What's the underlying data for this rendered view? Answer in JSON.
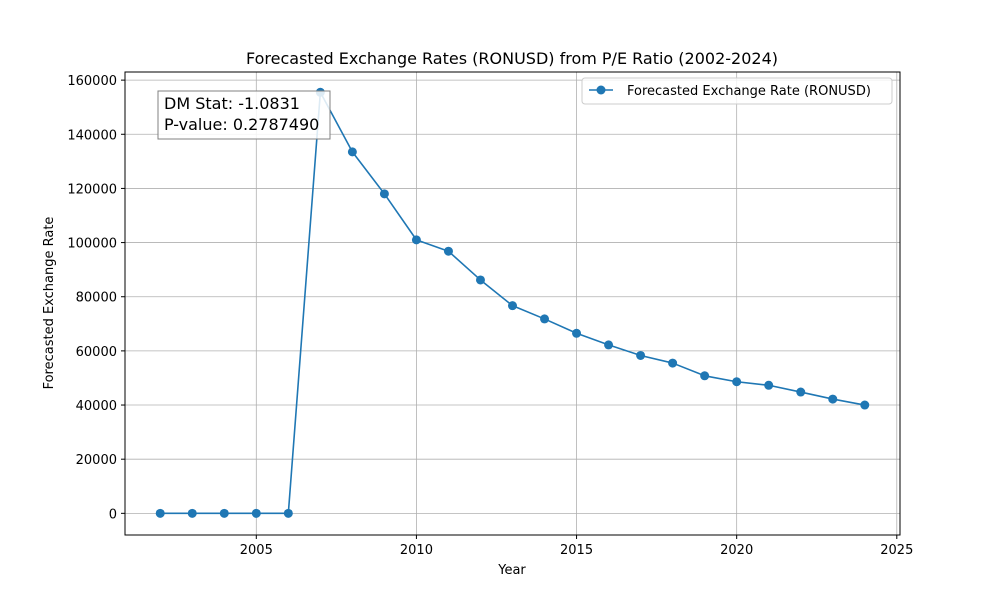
{
  "chart_data": {
    "type": "line",
    "title": "Forecasted Exchange Rates (RONUSD) from P/E Ratio (2002-2024)",
    "xlabel": "Year",
    "ylabel": "Forecasted Exchange Rate",
    "xlim": [
      2000.9,
      2025.1
    ],
    "ylim": [
      -8000,
      163000
    ],
    "xticks": [
      2005,
      2010,
      2015,
      2020,
      2025
    ],
    "yticks": [
      0,
      20000,
      40000,
      60000,
      80000,
      100000,
      120000,
      140000,
      160000
    ],
    "grid": true,
    "legend_position": "top-right",
    "series": [
      {
        "name": "Forecasted Exchange Rate (RONUSD)",
        "color": "#1f77b4",
        "marker": "circle",
        "x": [
          2002,
          2003,
          2004,
          2005,
          2006,
          2007,
          2008,
          2009,
          2010,
          2011,
          2012,
          2013,
          2014,
          2015,
          2016,
          2017,
          2018,
          2019,
          2020,
          2021,
          2022,
          2023,
          2024
        ],
        "y": [
          0,
          0,
          0,
          0,
          0,
          155500,
          133500,
          118000,
          101000,
          96800,
          86200,
          76700,
          71800,
          66500,
          62200,
          58300,
          55500,
          50800,
          48600,
          47300,
          44800,
          42200,
          40000
        ]
      }
    ],
    "annotation": {
      "lines": [
        "DM Stat: -1.0831",
        "P-value: 0.2787490"
      ],
      "position": "top-left"
    }
  }
}
